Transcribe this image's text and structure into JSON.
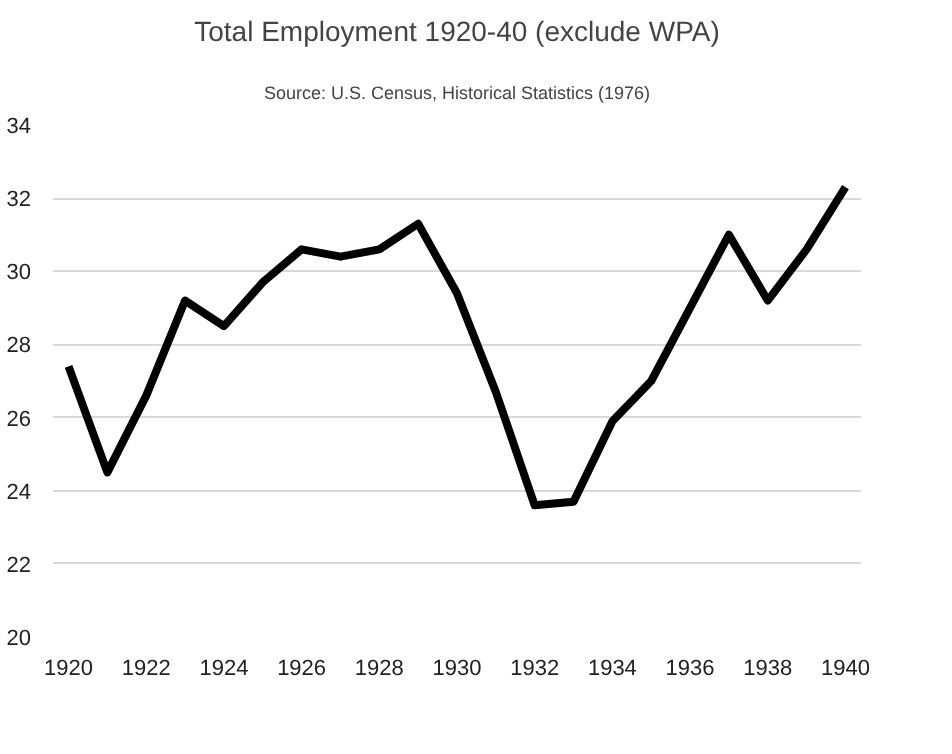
{
  "chart_data": {
    "type": "line",
    "title": "Total Employment 1920-40 (exclude WPA)",
    "subtitle": "Source: U.S. Census, Historical Statistics (1976)",
    "x": [
      1920,
      1921,
      1922,
      1923,
      1924,
      1925,
      1926,
      1927,
      1928,
      1929,
      1930,
      1931,
      1932,
      1933,
      1934,
      1935,
      1936,
      1937,
      1938,
      1939,
      1940
    ],
    "series": [
      {
        "color": "#000000",
        "values": [
          27.4,
          24.5,
          26.6,
          29.2,
          28.5,
          29.7,
          30.6,
          30.4,
          30.6,
          31.3,
          29.4,
          26.7,
          23.6,
          23.7,
          25.9,
          27.0,
          29.0,
          31.0,
          29.2,
          30.6,
          32.3
        ]
      }
    ],
    "xlim": [
      1919.6,
      1940.4
    ],
    "xticks": [
      1920,
      1922,
      1924,
      1926,
      1928,
      1930,
      1932,
      1934,
      1936,
      1938,
      1940
    ],
    "ylim": [
      20,
      34
    ],
    "yticks": [
      20,
      22,
      24,
      26,
      28,
      30,
      32,
      34
    ],
    "grid": "y",
    "marker": "none",
    "line_style": "solid"
  }
}
